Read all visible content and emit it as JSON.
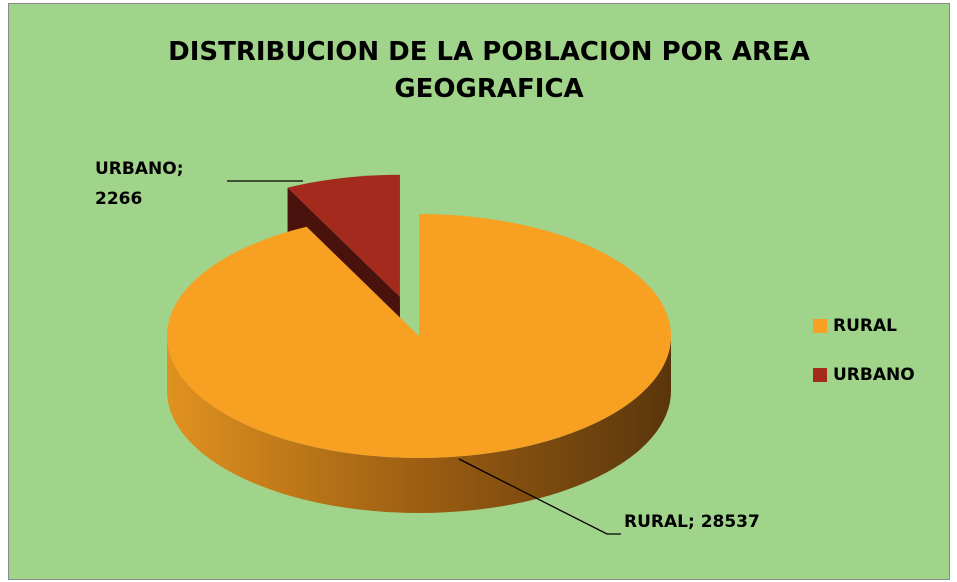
{
  "chart_data": {
    "type": "pie3d",
    "title": "DISTRIBUCION DE LA POBLACION POR AREA GEOGRAFICA",
    "categories": [
      "RURAL",
      "URBANO"
    ],
    "values": [
      28537,
      2266
    ],
    "value_labels": [
      "RURAL; 28537",
      "URBANO; 2266"
    ],
    "colors": [
      "#F7A021",
      "#A52A1E"
    ],
    "explode": [
      false,
      true
    ],
    "legend": "right"
  }
}
